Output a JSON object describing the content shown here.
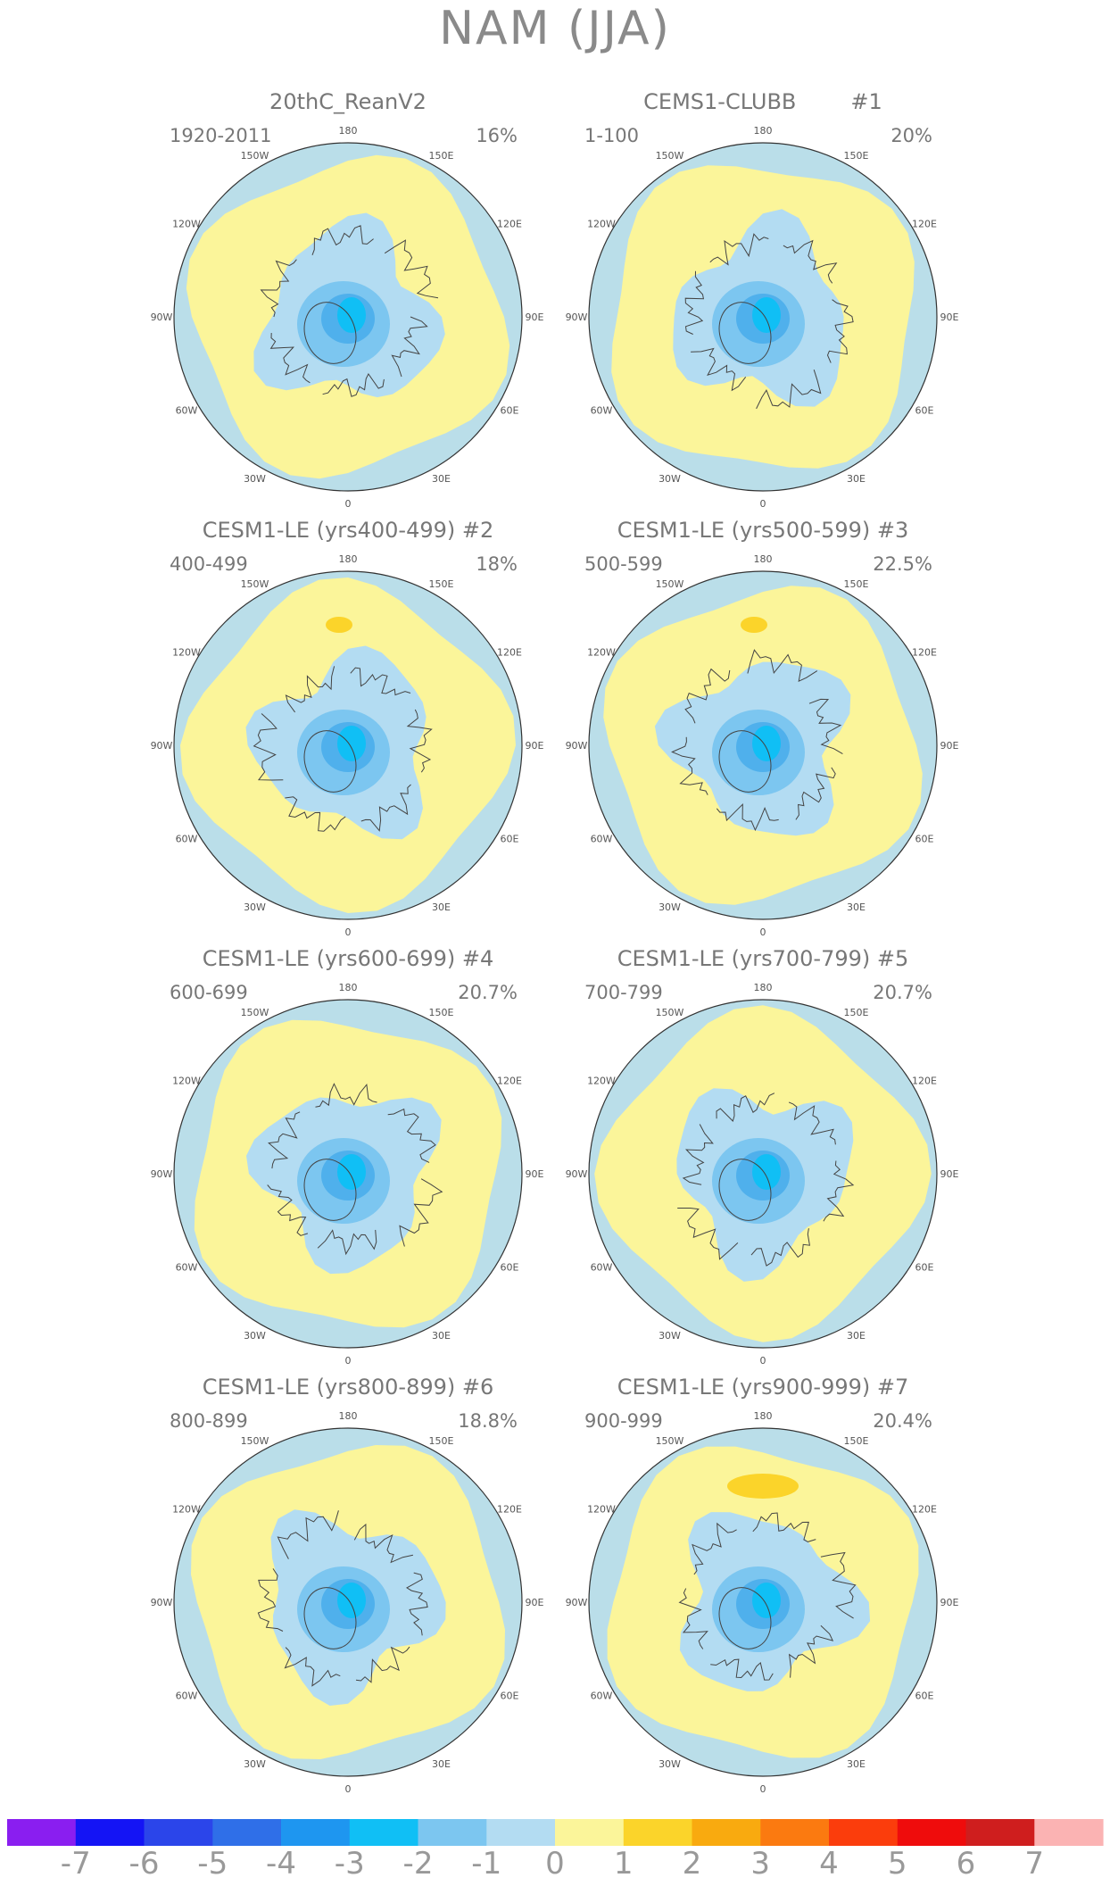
{
  "title": "NAM (JJA)",
  "panels": [
    {
      "title": "20thC_ReanV2",
      "range": "1920-2011",
      "variance": "16%",
      "high_blob": false
    },
    {
      "title": "CEMS1-CLUBB        #1",
      "range": "1-100",
      "variance": "20%",
      "high_blob": false
    },
    {
      "title": "CESM1-LE (yrs400-499) #2",
      "range": "400-499",
      "variance": "18%",
      "high_blob": true
    },
    {
      "title": "CESM1-LE (yrs500-599) #3",
      "range": "500-599",
      "variance": "22.5%",
      "high_blob": true
    },
    {
      "title": "CESM1-LE (yrs600-699) #4",
      "range": "600-699",
      "variance": "20.7%",
      "high_blob": false
    },
    {
      "title": "CESM1-LE (yrs700-799) #5",
      "range": "700-799",
      "variance": "20.7%",
      "high_blob": false
    },
    {
      "title": "CESM1-LE (yrs800-899) #6",
      "range": "800-899",
      "variance": "18.8%",
      "high_blob": false
    },
    {
      "title": "CESM1-LE (yrs900-999) #7",
      "range": "900-999",
      "variance": "20.4%",
      "high_blob": true
    }
  ],
  "longitude_labels": [
    "180",
    "150E",
    "120E",
    "90E",
    "60E",
    "30E",
    "0",
    "30W",
    "60W",
    "90W",
    "120W",
    "150W"
  ],
  "colorbar": {
    "labels": [
      "-7",
      "-6",
      "-5",
      "-4",
      "-3",
      "-2",
      "-1",
      "0",
      "1",
      "2",
      "3",
      "4",
      "5",
      "6",
      "7"
    ],
    "colors": [
      "#8a1ef0",
      "#1414f5",
      "#2b45ea",
      "#2f6fe8",
      "#1e96f0",
      "#10bff5",
      "#7cc6f0",
      "#b3dcf2",
      "#fbf59a",
      "#fbd42a",
      "#f9aa0f",
      "#fb7a10",
      "#fb3d0c",
      "#ef0c0c",
      "#cf1e1e",
      "#fbb3b3"
    ]
  }
}
